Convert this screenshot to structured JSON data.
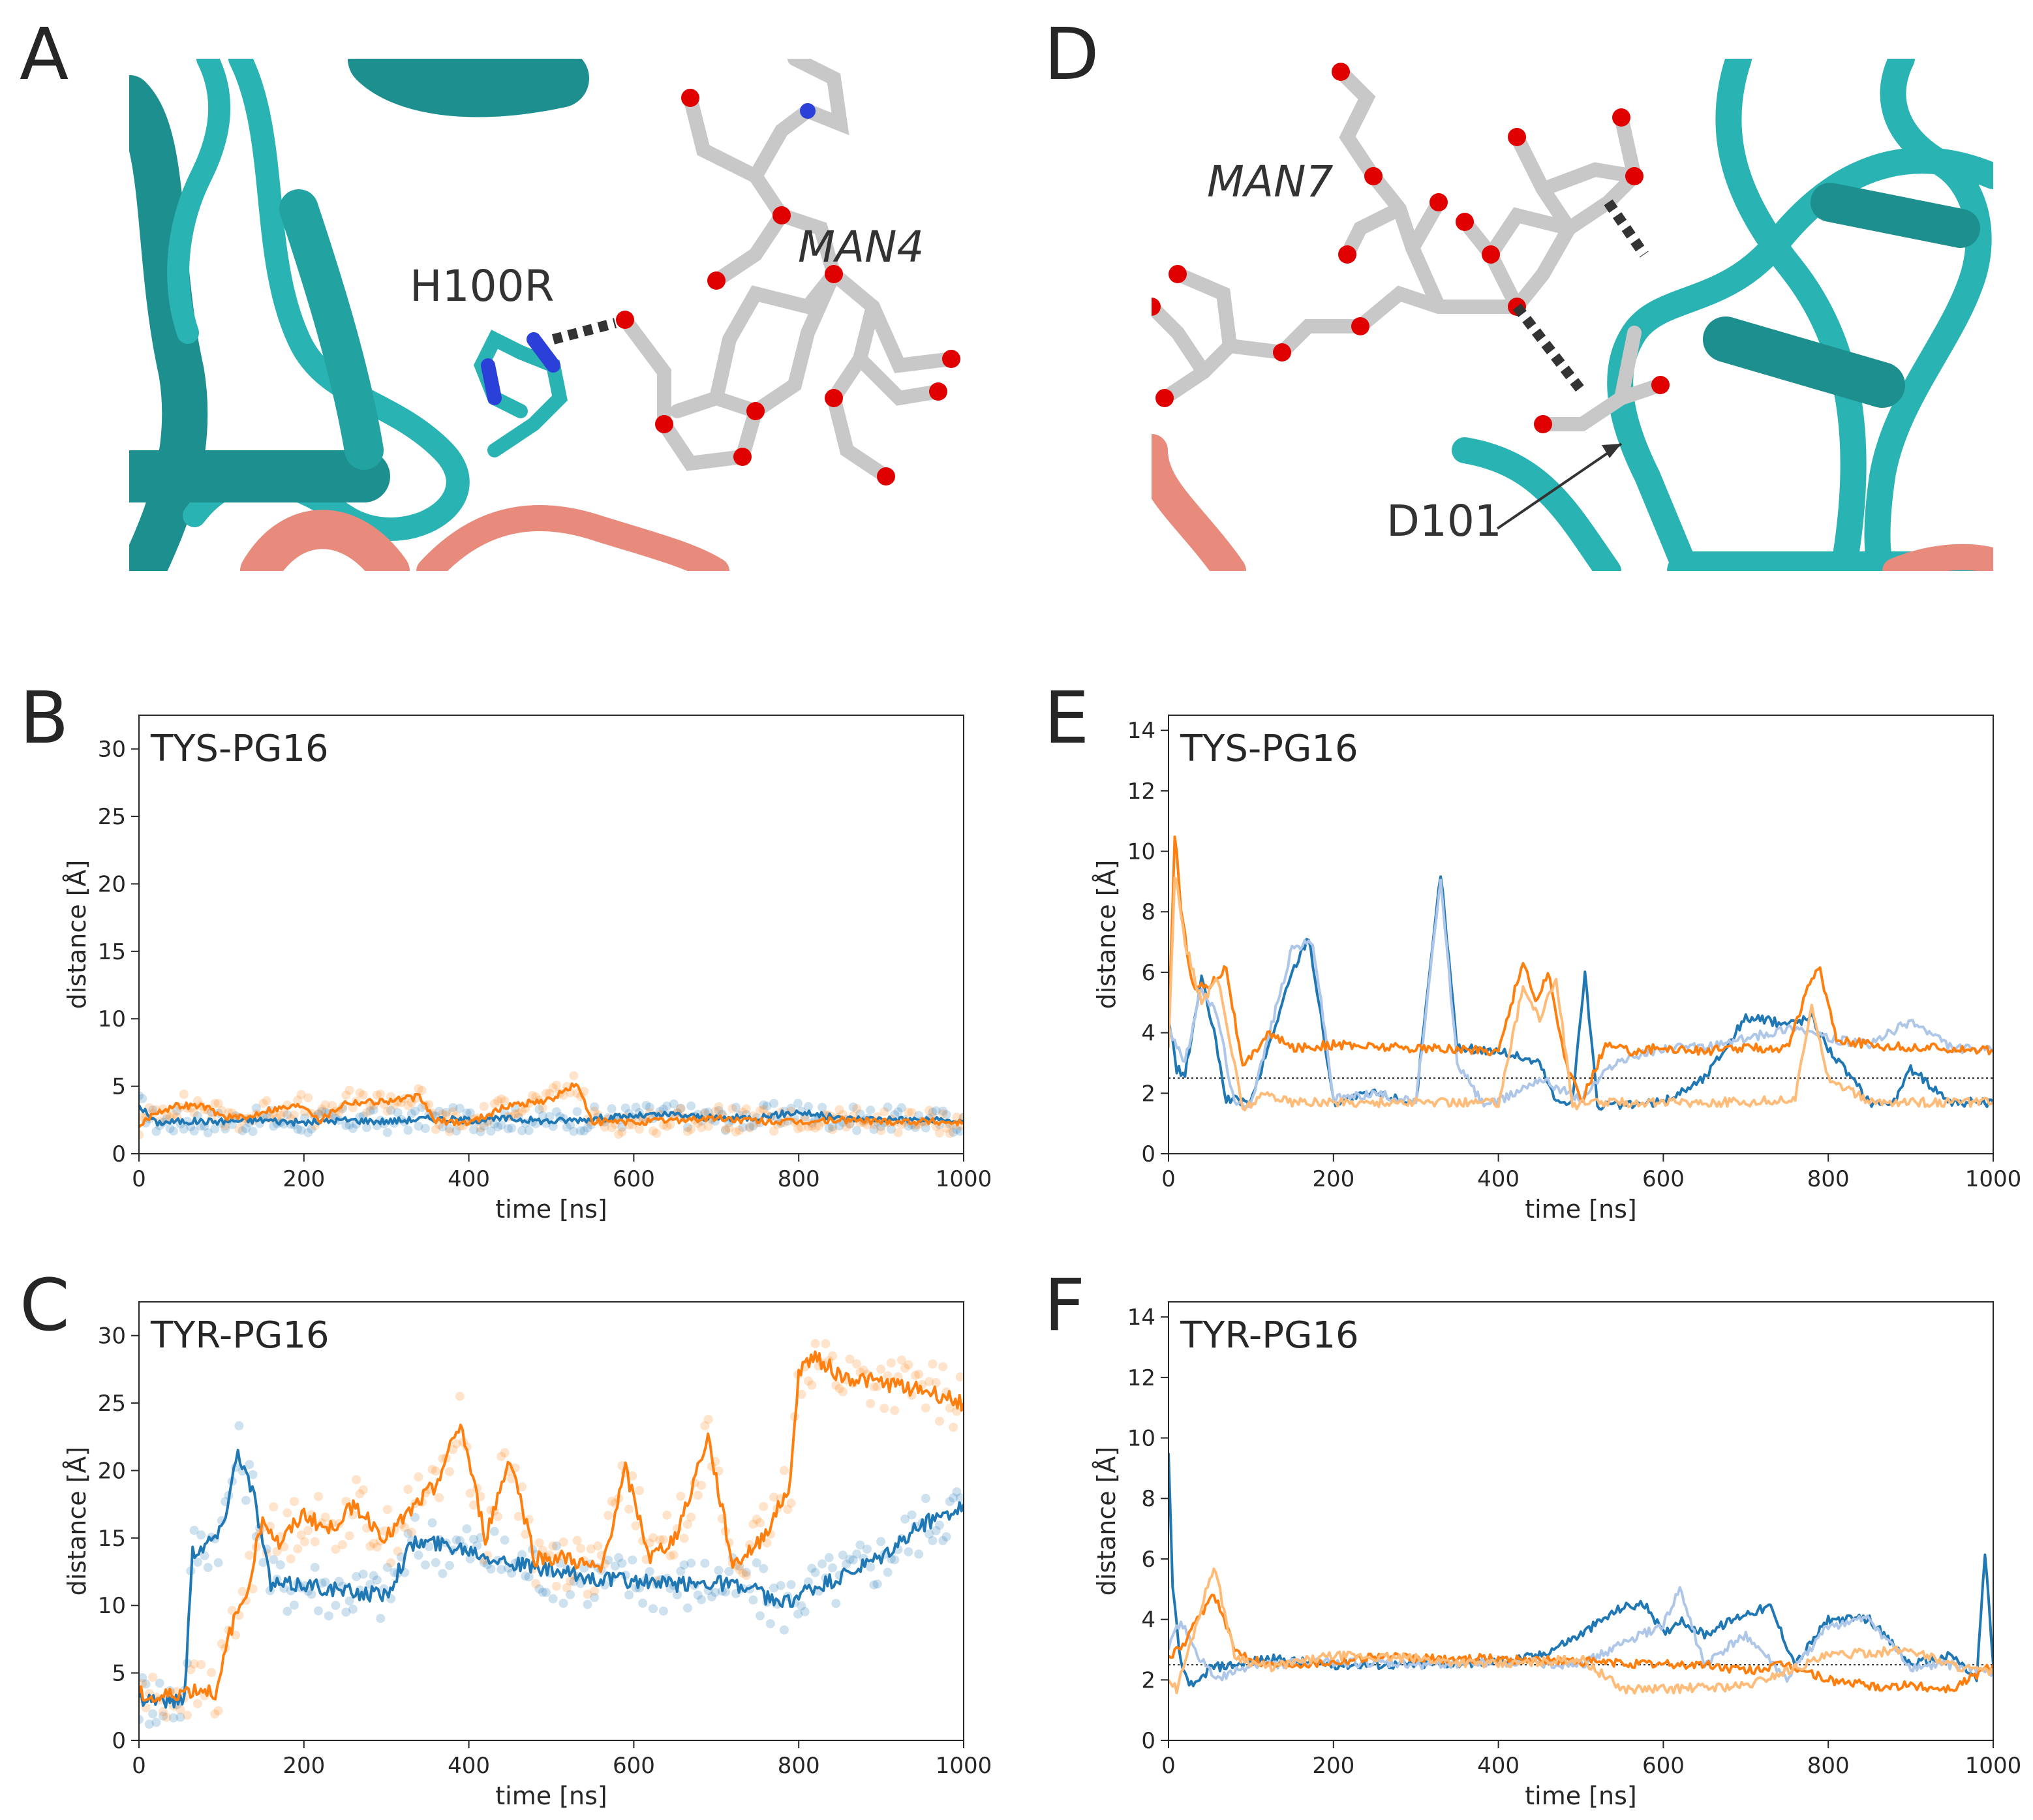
{
  "panels": {
    "A": {
      "letter": "A",
      "residue_label": "H100R",
      "sugar_label": "MAN4"
    },
    "D": {
      "letter": "D",
      "residue_label": "D101",
      "sugar_label": "MAN7"
    },
    "B": {
      "letter": "B"
    },
    "C": {
      "letter": "C"
    },
    "E": {
      "letter": "E"
    },
    "F": {
      "letter": "F"
    }
  },
  "colors": {
    "series_blue": "#1f77b4",
    "series_orange": "#ff7f0e",
    "series_blue_light": "#aec7e8",
    "series_orange_light": "#ffbb78",
    "protein_teal": "#2ab3b3",
    "protein_salmon": "#e88a7c",
    "carbon_gray": "#c8c8c8",
    "oxygen_red": "#e00000",
    "nitrogen_blue": "#2a40d8"
  },
  "chart_data": [
    {
      "panel": "B",
      "type": "line",
      "title": "TYS-PG16",
      "xlabel": "time [ns]",
      "ylabel": "distance [Å]",
      "xlim": [
        0,
        1000
      ],
      "ylim": [
        0,
        32.5
      ],
      "xticks": [
        "0",
        "200",
        "400",
        "600",
        "800",
        "1000"
      ],
      "yticks": [
        "0",
        "5",
        "10",
        "15",
        "20",
        "25",
        "30"
      ],
      "scatter_points": true,
      "series": [
        {
          "color": "#1f77b4",
          "x": [
            0,
            20,
            50,
            100,
            150,
            200,
            250,
            300,
            350,
            400,
            450,
            500,
            550,
            600,
            650,
            700,
            750,
            800,
            850,
            900,
            950,
            1000
          ],
          "y": [
            3.6,
            2.3,
            2.4,
            2.4,
            2.5,
            2.3,
            2.5,
            2.4,
            2.6,
            2.5,
            2.6,
            2.4,
            2.6,
            2.8,
            2.9,
            2.6,
            2.7,
            3.1,
            2.6,
            2.6,
            2.5,
            2.4
          ]
        },
        {
          "color": "#ff7f0e",
          "x": [
            0,
            20,
            50,
            80,
            100,
            130,
            150,
            200,
            220,
            250,
            300,
            340,
            360,
            400,
            450,
            500,
            530,
            550,
            600,
            650,
            700,
            750,
            800,
            850,
            900,
            950,
            1000
          ],
          "y": [
            2.0,
            3.1,
            3.6,
            3.5,
            2.8,
            2.6,
            3.2,
            3.6,
            2.5,
            3.8,
            3.9,
            4.2,
            2.4,
            2.3,
            3.6,
            4.0,
            5.2,
            2.4,
            2.3,
            2.5,
            2.6,
            2.4,
            2.3,
            2.5,
            2.4,
            2.4,
            2.3
          ]
        }
      ]
    },
    {
      "panel": "C",
      "type": "line",
      "title": "TYR-PG16",
      "xlabel": "time [ns]",
      "ylabel": "distance [Å]",
      "xlim": [
        0,
        1000
      ],
      "ylim": [
        0,
        32.5
      ],
      "xticks": [
        "0",
        "200",
        "400",
        "600",
        "800",
        "1000"
      ],
      "yticks": [
        "0",
        "5",
        "10",
        "15",
        "20",
        "25",
        "30"
      ],
      "scatter_points": true,
      "series": [
        {
          "color": "#1f77b4",
          "x": [
            0,
            20,
            40,
            55,
            65,
            80,
            100,
            120,
            140,
            160,
            180,
            200,
            250,
            300,
            330,
            350,
            400,
            450,
            500,
            550,
            600,
            650,
            700,
            750,
            780,
            800,
            850,
            900,
            950,
            1000
          ],
          "y": [
            3.2,
            3.1,
            2.9,
            3.2,
            14.0,
            14.5,
            15.5,
            21.5,
            18.0,
            11.5,
            11.5,
            11.6,
            11.0,
            10.8,
            14.5,
            14.7,
            14.2,
            13.2,
            12.5,
            12.0,
            11.8,
            11.5,
            11.8,
            11.0,
            10.0,
            10.8,
            12.0,
            13.5,
            16.0,
            17.5
          ]
        },
        {
          "color": "#ff7f0e",
          "x": [
            0,
            20,
            50,
            80,
            95,
            110,
            130,
            150,
            170,
            200,
            230,
            260,
            300,
            330,
            360,
            390,
            420,
            450,
            480,
            520,
            560,
            590,
            620,
            650,
            690,
            720,
            750,
            770,
            790,
            800,
            820,
            850,
            900,
            950,
            1000
          ],
          "y": [
            3.5,
            3.0,
            3.6,
            3.8,
            3.5,
            8.0,
            11.0,
            16.5,
            14.5,
            16.8,
            15.5,
            17.5,
            15.0,
            17.0,
            19.0,
            23.5,
            15.0,
            21.0,
            13.5,
            13.5,
            12.5,
            20.0,
            13.5,
            15.0,
            22.5,
            13.0,
            14.5,
            16.5,
            19.0,
            27.5,
            28.5,
            27.0,
            26.5,
            26.0,
            25.0
          ]
        }
      ]
    },
    {
      "panel": "E",
      "type": "line",
      "title": "TYS-PG16",
      "xlabel": "time [ns]",
      "ylabel": "distance [Å]",
      "xlim": [
        0,
        1000
      ],
      "ylim": [
        0,
        14.5
      ],
      "xticks": [
        "0",
        "200",
        "400",
        "600",
        "800",
        "1000"
      ],
      "yticks": [
        "0",
        "2",
        "4",
        "6",
        "8",
        "10",
        "12",
        "14"
      ],
      "reference_line": 2.5,
      "series": [
        {
          "color": "#1f77b4",
          "x": [
            0,
            10,
            20,
            40,
            55,
            70,
            100,
            150,
            170,
            185,
            200,
            250,
            300,
            330,
            350,
            400,
            450,
            470,
            490,
            505,
            520,
            560,
            600,
            650,
            700,
            750,
            780,
            800,
            850,
            880,
            900,
            950,
            1000
          ],
          "y": [
            4.5,
            2.8,
            2.6,
            5.8,
            4.0,
            1.8,
            1.7,
            6.0,
            7.2,
            4.5,
            1.7,
            2.0,
            1.7,
            9.3,
            3.5,
            3.4,
            3.0,
            1.7,
            1.8,
            6.0,
            1.6,
            1.6,
            1.7,
            2.5,
            4.5,
            4.3,
            4.5,
            3.5,
            1.7,
            1.7,
            2.8,
            1.7,
            1.7
          ]
        },
        {
          "color": "#aec7e8",
          "x": [
            0,
            20,
            40,
            60,
            80,
            100,
            150,
            175,
            190,
            200,
            250,
            300,
            330,
            350,
            380,
            400,
            450,
            500,
            540,
            600,
            650,
            700,
            760,
            800,
            850,
            900,
            950,
            1000
          ],
          "y": [
            4.2,
            3.0,
            5.5,
            4.5,
            1.6,
            1.7,
            6.8,
            7.0,
            4.0,
            1.8,
            2.0,
            1.7,
            9.0,
            3.0,
            1.7,
            1.7,
            2.5,
            1.8,
            3.0,
            3.5,
            3.5,
            3.8,
            4.2,
            3.8,
            3.6,
            4.4,
            3.5,
            3.4
          ]
        },
        {
          "color": "#ff7f0e",
          "x": [
            0,
            8,
            15,
            30,
            50,
            70,
            90,
            120,
            150,
            200,
            300,
            400,
            430,
            445,
            460,
            480,
            500,
            530,
            560,
            600,
            650,
            700,
            750,
            780,
            790,
            810,
            850,
            900,
            950,
            1000
          ],
          "y": [
            4.0,
            10.9,
            8.0,
            5.5,
            5.6,
            6.2,
            2.8,
            4.0,
            3.5,
            3.6,
            3.5,
            3.4,
            6.4,
            5.0,
            6.0,
            3.2,
            1.7,
            3.6,
            3.4,
            3.5,
            3.4,
            3.5,
            3.5,
            5.8,
            6.1,
            3.8,
            3.6,
            3.5,
            3.5,
            3.4
          ]
        },
        {
          "color": "#ffbb78",
          "x": [
            0,
            8,
            20,
            40,
            60,
            90,
            120,
            150,
            200,
            300,
            400,
            430,
            450,
            470,
            490,
            520,
            600,
            700,
            760,
            780,
            800,
            850,
            900,
            950,
            1000
          ],
          "y": [
            3.5,
            9.5,
            7.0,
            5.0,
            5.8,
            1.5,
            2.0,
            1.7,
            1.7,
            1.7,
            1.7,
            5.5,
            4.5,
            5.8,
            1.6,
            1.7,
            1.7,
            1.7,
            1.8,
            5.0,
            2.5,
            1.7,
            1.7,
            1.7,
            1.7
          ]
        }
      ]
    },
    {
      "panel": "F",
      "type": "line",
      "title": "TYR-PG16",
      "xlabel": "time [ns]",
      "ylabel": "distance [Å]",
      "xlim": [
        0,
        1000
      ],
      "ylim": [
        0,
        14.5
      ],
      "xticks": [
        "0",
        "200",
        "400",
        "600",
        "800",
        "1000"
      ],
      "yticks": [
        "0",
        "2",
        "4",
        "6",
        "8",
        "10",
        "12",
        "14"
      ],
      "reference_line": 2.5,
      "series": [
        {
          "color": "#1f77b4",
          "x": [
            0,
            5,
            15,
            30,
            50,
            80,
            120,
            200,
            300,
            400,
            450,
            500,
            550,
            580,
            600,
            620,
            650,
            700,
            730,
            760,
            800,
            850,
            900,
            950,
            980,
            990,
            1000
          ],
          "y": [
            9.5,
            5.0,
            2.5,
            1.7,
            2.4,
            2.5,
            2.7,
            2.5,
            2.5,
            2.6,
            2.8,
            3.5,
            4.4,
            4.5,
            3.5,
            4.0,
            3.5,
            4.2,
            4.4,
            2.5,
            4.0,
            4.0,
            2.5,
            2.8,
            2.0,
            6.2,
            2.5
          ]
        },
        {
          "color": "#aec7e8",
          "x": [
            0,
            15,
            30,
            60,
            100,
            200,
            300,
            400,
            500,
            550,
            600,
            620,
            650,
            700,
            750,
            800,
            850,
            900,
            950,
            1000
          ],
          "y": [
            3.0,
            4.0,
            3.0,
            2.0,
            2.5,
            2.6,
            2.5,
            2.6,
            2.5,
            3.2,
            3.8,
            5.0,
            2.5,
            3.5,
            2.0,
            3.8,
            4.0,
            2.4,
            2.5,
            2.2
          ]
        },
        {
          "color": "#ff7f0e",
          "x": [
            0,
            15,
            40,
            55,
            80,
            120,
            200,
            250,
            300,
            400,
            500,
            600,
            650,
            700,
            750,
            800,
            850,
            900,
            950,
            1000
          ],
          "y": [
            2.8,
            3.0,
            4.2,
            4.9,
            3.0,
            2.5,
            2.6,
            2.8,
            2.7,
            2.7,
            2.6,
            2.5,
            2.5,
            2.3,
            2.5,
            2.0,
            1.8,
            1.8,
            1.7,
            2.5
          ]
        },
        {
          "color": "#ffbb78",
          "x": [
            0,
            10,
            30,
            55,
            80,
            120,
            200,
            300,
            400,
            500,
            550,
            600,
            700,
            800,
            850,
            900,
            950,
            1000
          ],
          "y": [
            2.0,
            1.7,
            3.5,
            5.8,
            2.8,
            2.4,
            2.8,
            2.7,
            2.5,
            2.7,
            1.7,
            1.7,
            1.8,
            2.8,
            2.9,
            3.0,
            2.5,
            2.2
          ]
        }
      ]
    }
  ]
}
